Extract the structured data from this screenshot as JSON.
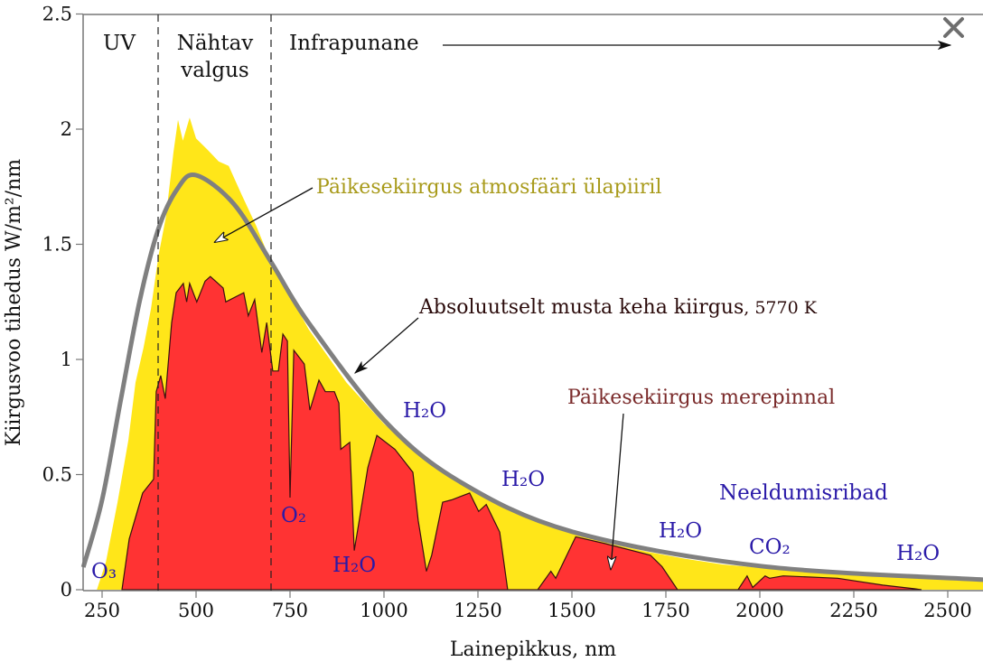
{
  "chart_data": {
    "type": "area",
    "xlabel": "Lainepikkus, nm",
    "ylabel": "Kiirgusvoo tihedus W/m²/nm",
    "xlim": [
      200,
      2600
    ],
    "ylim": [
      0,
      2.5
    ],
    "xticks": [
      "250",
      "500",
      "750",
      "1000",
      "1250",
      "1500",
      "1750",
      "2000",
      "2250",
      "2500"
    ],
    "xtick_values": [
      250,
      500,
      750,
      1000,
      1250,
      1500,
      1750,
      2000,
      2250,
      2500
    ],
    "yticks": [
      "0",
      "0.5",
      "1",
      "1.5",
      "2",
      "2.5"
    ],
    "ytick_values": [
      0,
      0.5,
      1,
      1.5,
      2,
      2.5
    ],
    "grid": false,
    "regions": [
      {
        "label": "UV",
        "to": 400
      },
      {
        "label": "Nähtav",
        "label2": "valgus",
        "from": 400,
        "to": 700
      },
      {
        "label": "Infrapunane",
        "from": 700
      }
    ],
    "series": [
      {
        "name": "Päikesekiirgus atmosfääri ülapiiril",
        "color": "#ffe619",
        "points": [
          [
            236,
            0
          ],
          [
            260,
            0.12
          ],
          [
            291,
            0.38
          ],
          [
            320,
            0.65
          ],
          [
            339,
            0.9
          ],
          [
            360,
            1.05
          ],
          [
            380,
            1.22
          ],
          [
            400,
            1.45
          ],
          [
            420,
            1.62
          ],
          [
            440,
            1.9
          ],
          [
            452,
            2.04
          ],
          [
            465,
            1.95
          ],
          [
            483,
            2.05
          ],
          [
            500,
            1.96
          ],
          [
            531,
            1.91
          ],
          [
            560,
            1.86
          ],
          [
            587,
            1.84
          ],
          [
            620,
            1.72
          ],
          [
            660,
            1.58
          ],
          [
            700,
            1.42
          ],
          [
            800,
            1.13
          ],
          [
            900,
            0.9
          ],
          [
            1000,
            0.72
          ],
          [
            1100,
            0.58
          ],
          [
            1200,
            0.47
          ],
          [
            1300,
            0.38
          ],
          [
            1400,
            0.31
          ],
          [
            1500,
            0.25
          ],
          [
            1600,
            0.2
          ],
          [
            1700,
            0.165
          ],
          [
            1800,
            0.135
          ],
          [
            1900,
            0.11
          ],
          [
            2000,
            0.095
          ],
          [
            2200,
            0.07
          ],
          [
            2400,
            0.05
          ],
          [
            2600,
            0.04
          ],
          [
            2600,
            0
          ]
        ]
      },
      {
        "name": "Päikesekiirgus merepinnal",
        "color": "#ff3333",
        "points": [
          [
            303,
            0
          ],
          [
            322,
            0.22
          ],
          [
            358,
            0.42
          ],
          [
            387,
            0.48
          ],
          [
            394,
            0.86
          ],
          [
            406,
            0.93
          ],
          [
            418,
            0.83
          ],
          [
            435,
            1.16
          ],
          [
            447,
            1.29
          ],
          [
            466,
            1.33
          ],
          [
            475,
            1.25
          ],
          [
            483,
            1.33
          ],
          [
            502,
            1.25
          ],
          [
            524,
            1.34
          ],
          [
            538,
            1.36
          ],
          [
            572,
            1.31
          ],
          [
            579,
            1.25
          ],
          [
            627,
            1.29
          ],
          [
            639,
            1.19
          ],
          [
            656,
            1.26
          ],
          [
            675,
            1.03
          ],
          [
            688,
            1.16
          ],
          [
            704,
            0.95
          ],
          [
            719,
            0.95
          ],
          [
            731,
            1.11
          ],
          [
            743,
            1.08
          ],
          [
            750,
            0.4
          ],
          [
            760,
            1.04
          ],
          [
            788,
            0.98
          ],
          [
            803,
            0.78
          ],
          [
            827,
            0.91
          ],
          [
            844,
            0.86
          ],
          [
            868,
            0.86
          ],
          [
            880,
            0.81
          ],
          [
            885,
            0.61
          ],
          [
            909,
            0.64
          ],
          [
            921,
            0.17
          ],
          [
            935,
            0.31
          ],
          [
            957,
            0.53
          ],
          [
            981,
            0.67
          ],
          [
            1029,
            0.61
          ],
          [
            1077,
            0.51
          ],
          [
            1091,
            0.3
          ],
          [
            1113,
            0.08
          ],
          [
            1127,
            0.15
          ],
          [
            1156,
            0.38
          ],
          [
            1180,
            0.39
          ],
          [
            1228,
            0.42
          ],
          [
            1252,
            0.34
          ],
          [
            1272,
            0.37
          ],
          [
            1308,
            0.25
          ],
          [
            1329,
            0
          ],
          [
            1409,
            0
          ],
          [
            1444,
            0.08
          ],
          [
            1457,
            0.05
          ],
          [
            1510,
            0.23
          ],
          [
            1589,
            0.2
          ],
          [
            1709,
            0.15
          ],
          [
            1740,
            0.1
          ],
          [
            1781,
            0
          ],
          [
            1942,
            0
          ],
          [
            1966,
            0.06
          ],
          [
            1981,
            0.01
          ],
          [
            2014,
            0.06
          ],
          [
            2026,
            0.05
          ],
          [
            2062,
            0.06
          ],
          [
            2207,
            0.05
          ],
          [
            2327,
            0.02
          ],
          [
            2413,
            0.004
          ],
          [
            2430,
            0
          ]
        ]
      },
      {
        "name": "Absoluutselt musta keha kiirgus",
        "temperature_label": "5770 K",
        "color": "#808080",
        "points": [
          [
            200,
            0.098
          ],
          [
            250,
            0.39
          ],
          [
            300,
            0.827
          ],
          [
            350,
            1.254
          ],
          [
            400,
            1.568
          ],
          [
            450,
            1.74
          ],
          [
            500,
            1.8
          ],
          [
            600,
            1.676
          ],
          [
            700,
            1.422
          ],
          [
            800,
            1.158
          ],
          [
            1000,
            0.737
          ],
          [
            1200,
            0.471
          ],
          [
            1500,
            0.252
          ],
          [
            2000,
            0.103
          ],
          [
            2600,
            0.043
          ]
        ]
      }
    ],
    "annotations": {
      "toa_label": "Päikesekiirgus atmosfääri ülapiiril",
      "toa_color": "#a89a1a",
      "blackbody_label": "Absoluutselt musta keha kiirgus",
      "blackbody_temp": ", 5770 K",
      "sea_label": "Päikesekiirgus merepinnal",
      "sea_color": "#7a2a2a",
      "absorption_title": "Neeldumisribad",
      "absorption_color": "#2a1aa8",
      "bands": [
        "O₃",
        "O₂",
        "H₂O",
        "H₂O",
        "H₂O",
        "H₂O",
        "CO₂",
        "H₂O"
      ]
    },
    "close_icon": "close-x-icon"
  }
}
